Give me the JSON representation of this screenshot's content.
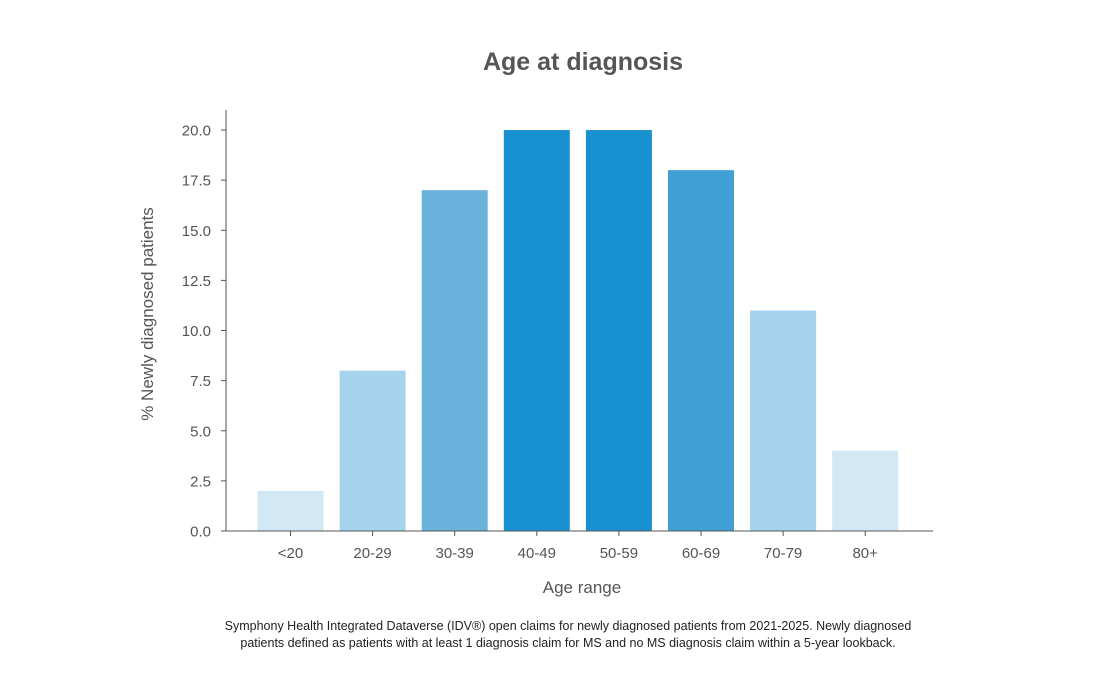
{
  "chart_data": {
    "type": "bar",
    "title": "Age at diagnosis",
    "xlabel": "Age range",
    "ylabel": "% Newly diagnosed patients",
    "categories": [
      "<20",
      "20-29",
      "30-39",
      "40-49",
      "50-59",
      "60-69",
      "70-79",
      "80+"
    ],
    "values": [
      2,
      8,
      17,
      20,
      20,
      18,
      11,
      4
    ],
    "ylim": [
      0,
      21
    ],
    "yticks": [
      "0.0",
      "2.5",
      "5.0",
      "7.5",
      "10.0",
      "12.5",
      "15.0",
      "17.5",
      "20.0"
    ],
    "grid": false,
    "bar_colors": [
      "#d3e8f5",
      "#a4d3eb",
      "#69b2db",
      "#1990d0",
      "#1990d0",
      "#40a0d6",
      "#a4d3eb",
      "#d3e8f5"
    ],
    "axis_color": "#555555"
  },
  "footnote": {
    "line1": "Symphony Health Integrated Dataverse (IDV®) open claims for newly diagnosed patients from 2021-2025. Newly diagnosed",
    "line2": "patients defined as patients with at least 1 diagnosis claim for MS and no MS diagnosis claim within a 5-year lookback."
  }
}
